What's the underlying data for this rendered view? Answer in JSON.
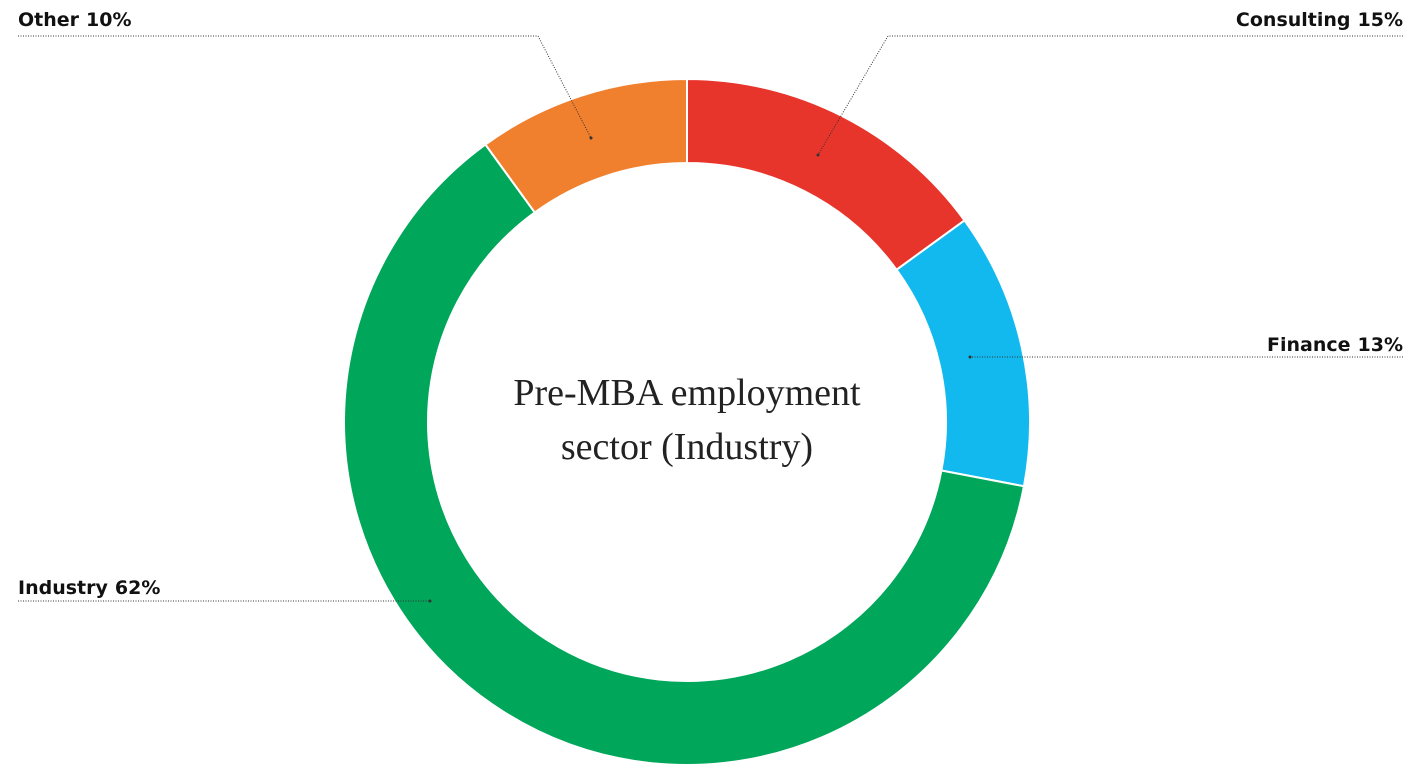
{
  "chart_data": {
    "type": "donut",
    "title": "Pre-MBA employment sector (Industry)",
    "categories": [
      "Consulting",
      "Finance",
      "Industry",
      "Other"
    ],
    "values": [
      15,
      13,
      62,
      10
    ],
    "value_labels": [
      "15%",
      "13%",
      "62%",
      "10%"
    ],
    "colors": [
      "#e8352b",
      "#12b9ee",
      "#00a65a",
      "#f07f2e"
    ]
  }
}
